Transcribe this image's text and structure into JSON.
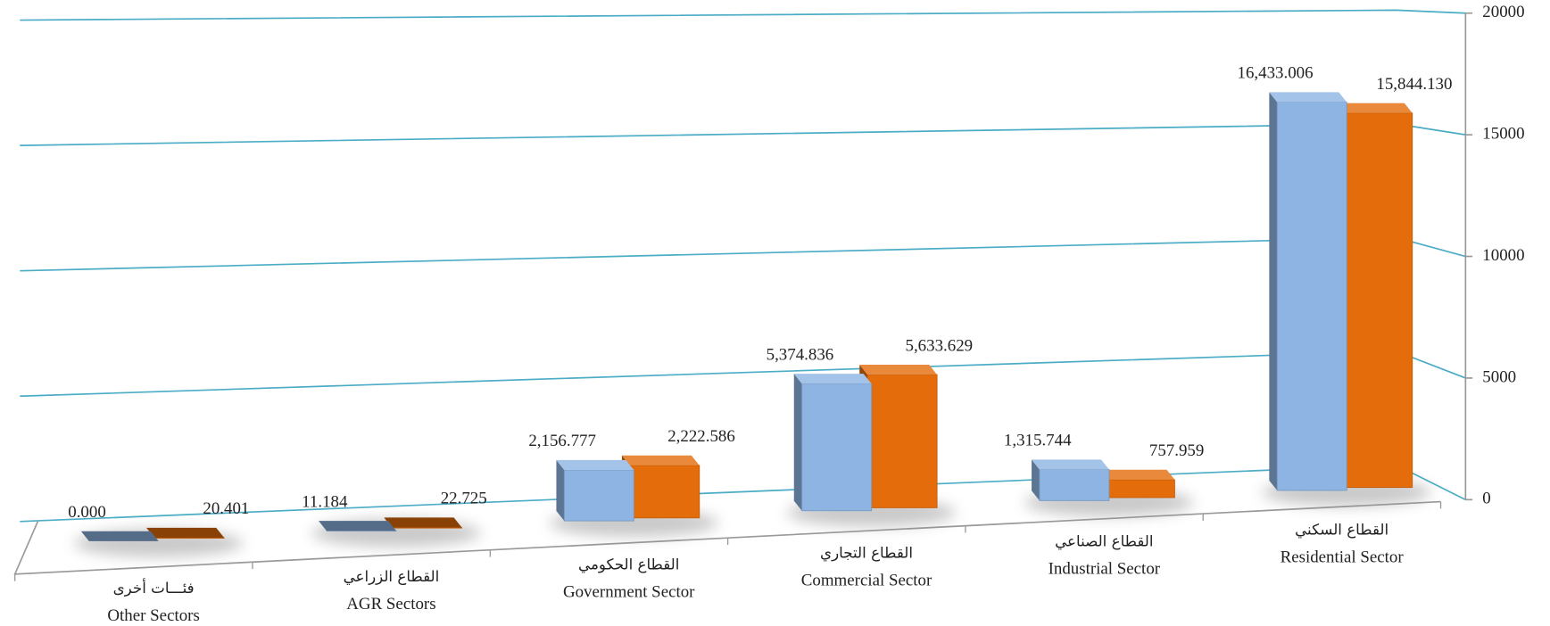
{
  "chart_data": {
    "type": "bar3d",
    "categories": [
      "Other Sectors",
      "AGR Sectors",
      "Government Sector",
      "Commercial Sector",
      "Industrial Sector",
      "Residential Sector"
    ],
    "categories_arabic": [
      "فئـــات أخرى",
      "القطاع الزراعي",
      "القطاع الحكومي",
      "القطاع التجاري",
      "القطاع الصناعي",
      "القطاع السكني"
    ],
    "series": [
      {
        "color": "#8db4e2",
        "values": [
          0.0,
          11.184,
          2156.777,
          5374.836,
          1315.744,
          16433.006
        ],
        "value_labels": [
          "0.000",
          "11.184",
          "2,156.777",
          "5,374.836",
          "1,315.744",
          "16,433.006"
        ]
      },
      {
        "color": "#e46c0a",
        "values": [
          20.401,
          22.725,
          2222.586,
          5633.629,
          757.959,
          15844.13
        ],
        "value_labels": [
          "20.401",
          "22.725",
          "2,222.586",
          "5,633.629",
          "757.959",
          "15,844.130"
        ]
      }
    ],
    "ylim": [
      0,
      20000
    ],
    "yticks": [
      0,
      5000,
      10000,
      15000,
      20000
    ],
    "grid": true,
    "grid_color": "#4bacc6"
  }
}
